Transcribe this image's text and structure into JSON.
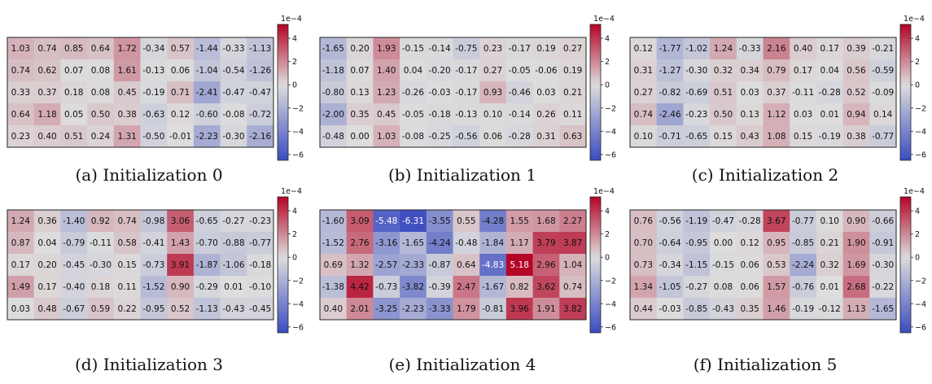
{
  "figure": {
    "panels": [
      {
        "caption": "(a) Initialization 0"
      },
      {
        "caption": "(b) Initialization 1"
      },
      {
        "caption": "(c) Initialization 2"
      },
      {
        "caption": "(d) Initialization 3"
      },
      {
        "caption": "(e) Initialization 4"
      },
      {
        "caption": "(f) Initialization 5"
      }
    ]
  },
  "colors": {
    "low": "#3b4cc0",
    "mid": "#dddddd",
    "high": "#b40426",
    "border": "#222222",
    "text": "#111111"
  },
  "chart_data": [
    {
      "type": "heatmap",
      "title": "",
      "colorbar": {
        "range": [
          -6.5,
          5.2
        ],
        "ticks": [
          4,
          2,
          0,
          -2,
          -4,
          -6
        ],
        "exponent_label": "1e−4"
      },
      "values": [
        [
          1.03,
          0.74,
          0.85,
          0.64,
          1.72,
          -0.34,
          0.57,
          -1.44,
          -0.33,
          -1.13
        ],
        [
          0.74,
          0.62,
          0.07,
          0.08,
          1.61,
          -0.13,
          0.06,
          -1.04,
          -0.54,
          -1.26
        ],
        [
          0.33,
          0.37,
          0.18,
          0.08,
          0.45,
          -0.19,
          0.71,
          -2.41,
          -0.47,
          -0.47
        ],
        [
          0.64,
          1.18,
          0.05,
          0.5,
          0.38,
          -0.63,
          0.12,
          -0.6,
          -0.08,
          -0.72
        ],
        [
          0.23,
          0.4,
          0.51,
          0.24,
          1.31,
          -0.5,
          -0.01,
          -2.23,
          -0.3,
          -2.16
        ]
      ]
    },
    {
      "type": "heatmap",
      "title": "",
      "colorbar": {
        "range": [
          -6.5,
          5.2
        ],
        "ticks": [
          4,
          2,
          0,
          -2,
          -4,
          -6
        ],
        "exponent_label": "1e−4"
      },
      "values": [
        [
          -1.65,
          0.2,
          1.93,
          -0.15,
          -0.14,
          -0.75,
          0.23,
          -0.17,
          0.19,
          0.27
        ],
        [
          -1.18,
          0.07,
          1.4,
          0.04,
          -0.2,
          -0.17,
          0.27,
          -0.05,
          -0.06,
          0.19
        ],
        [
          -0.8,
          0.13,
          1.23,
          -0.26,
          -0.03,
          -0.17,
          0.93,
          -0.46,
          0.03,
          0.21
        ],
        [
          -2.0,
          0.35,
          0.45,
          -0.05,
          -0.18,
          -0.13,
          0.1,
          -0.14,
          0.26,
          0.11
        ],
        [
          -0.48,
          0.0,
          1.03,
          -0.08,
          -0.25,
          -0.56,
          0.06,
          -0.28,
          0.31,
          0.63
        ]
      ]
    },
    {
      "type": "heatmap",
      "title": "",
      "colorbar": {
        "range": [
          -6.5,
          5.2
        ],
        "ticks": [
          4,
          2,
          0,
          -2,
          -4,
          -6
        ],
        "exponent_label": "1e−4"
      },
      "values": [
        [
          0.12,
          -1.77,
          -1.02,
          1.24,
          -0.33,
          2.16,
          0.4,
          0.17,
          0.39,
          -0.21
        ],
        [
          0.31,
          -1.27,
          -0.3,
          0.32,
          0.34,
          0.79,
          0.17,
          0.04,
          0.56,
          -0.59
        ],
        [
          0.27,
          -0.82,
          -0.69,
          0.51,
          0.03,
          0.37,
          -0.11,
          -0.28,
          0.52,
          -0.09
        ],
        [
          0.74,
          -2.46,
          -0.23,
          0.5,
          0.13,
          1.12,
          0.03,
          0.01,
          0.94,
          0.14
        ],
        [
          0.1,
          -0.71,
          -0.65,
          0.15,
          0.43,
          1.08,
          0.15,
          -0.19,
          0.38,
          -0.77
        ]
      ]
    },
    {
      "type": "heatmap",
      "title": "",
      "colorbar": {
        "range": [
          -6.5,
          5.2
        ],
        "ticks": [
          4,
          2,
          0,
          -2,
          -4,
          -6
        ],
        "exponent_label": "1e−4"
      },
      "values": [
        [
          1.24,
          0.36,
          -1.4,
          0.92,
          0.74,
          -0.98,
          3.06,
          -0.65,
          -0.27,
          -0.23
        ],
        [
          0.87,
          0.04,
          -0.79,
          -0.11,
          0.58,
          -0.41,
          1.43,
          -0.7,
          -0.88,
          -0.77
        ],
        [
          0.17,
          0.2,
          -0.45,
          -0.3,
          0.15,
          -0.73,
          3.91,
          -1.87,
          -1.06,
          -0.18
        ],
        [
          1.49,
          0.17,
          -0.4,
          0.18,
          0.11,
          -1.52,
          0.9,
          -0.29,
          0.01,
          -0.1
        ],
        [
          0.03,
          0.48,
          -0.67,
          0.59,
          0.22,
          -0.95,
          0.52,
          -1.13,
          -0.43,
          -0.45
        ]
      ]
    },
    {
      "type": "heatmap",
      "title": "",
      "colorbar": {
        "range": [
          -6.5,
          5.2
        ],
        "ticks": [
          4,
          2,
          0,
          -2,
          -4,
          -6
        ],
        "exponent_label": "1e−4"
      },
      "values": [
        [
          -1.6,
          3.09,
          -5.48,
          -6.31,
          -3.55,
          0.55,
          -4.28,
          1.55,
          1.68,
          2.27
        ],
        [
          -1.52,
          2.76,
          -3.16,
          -1.65,
          -4.24,
          -0.48,
          -1.84,
          1.17,
          3.79,
          3.87
        ],
        [
          0.69,
          1.32,
          -2.57,
          -2.33,
          -0.87,
          0.64,
          -4.83,
          5.18,
          2.96,
          1.04
        ],
        [
          -1.38,
          4.42,
          -0.73,
          -3.82,
          -0.39,
          2.47,
          -1.67,
          0.82,
          3.62,
          0.74
        ],
        [
          0.4,
          2.01,
          -3.25,
          -2.23,
          -3.33,
          1.79,
          -0.81,
          3.96,
          1.91,
          3.82
        ]
      ]
    },
    {
      "type": "heatmap",
      "title": "",
      "colorbar": {
        "range": [
          -6.5,
          5.2
        ],
        "ticks": [
          4,
          2,
          0,
          -2,
          -4,
          -6
        ],
        "exponent_label": "1e−4"
      },
      "values": [
        [
          0.76,
          -0.56,
          -1.19,
          -0.47,
          -0.28,
          3.67,
          -0.77,
          0.1,
          0.9,
          -0.66
        ],
        [
          0.7,
          -0.64,
          -0.95,
          0.0,
          0.12,
          0.95,
          -0.85,
          0.21,
          1.9,
          -0.91
        ],
        [
          0.73,
          -0.34,
          -1.15,
          -0.15,
          0.06,
          0.53,
          -2.24,
          0.32,
          1.69,
          -0.3
        ],
        [
          1.34,
          -1.05,
          -0.27,
          0.08,
          0.06,
          1.57,
          -0.76,
          0.01,
          2.68,
          -0.22
        ],
        [
          0.44,
          -0.03,
          -0.85,
          -0.43,
          0.35,
          1.46,
          -0.19,
          -0.12,
          1.13,
          -1.65
        ]
      ]
    }
  ]
}
